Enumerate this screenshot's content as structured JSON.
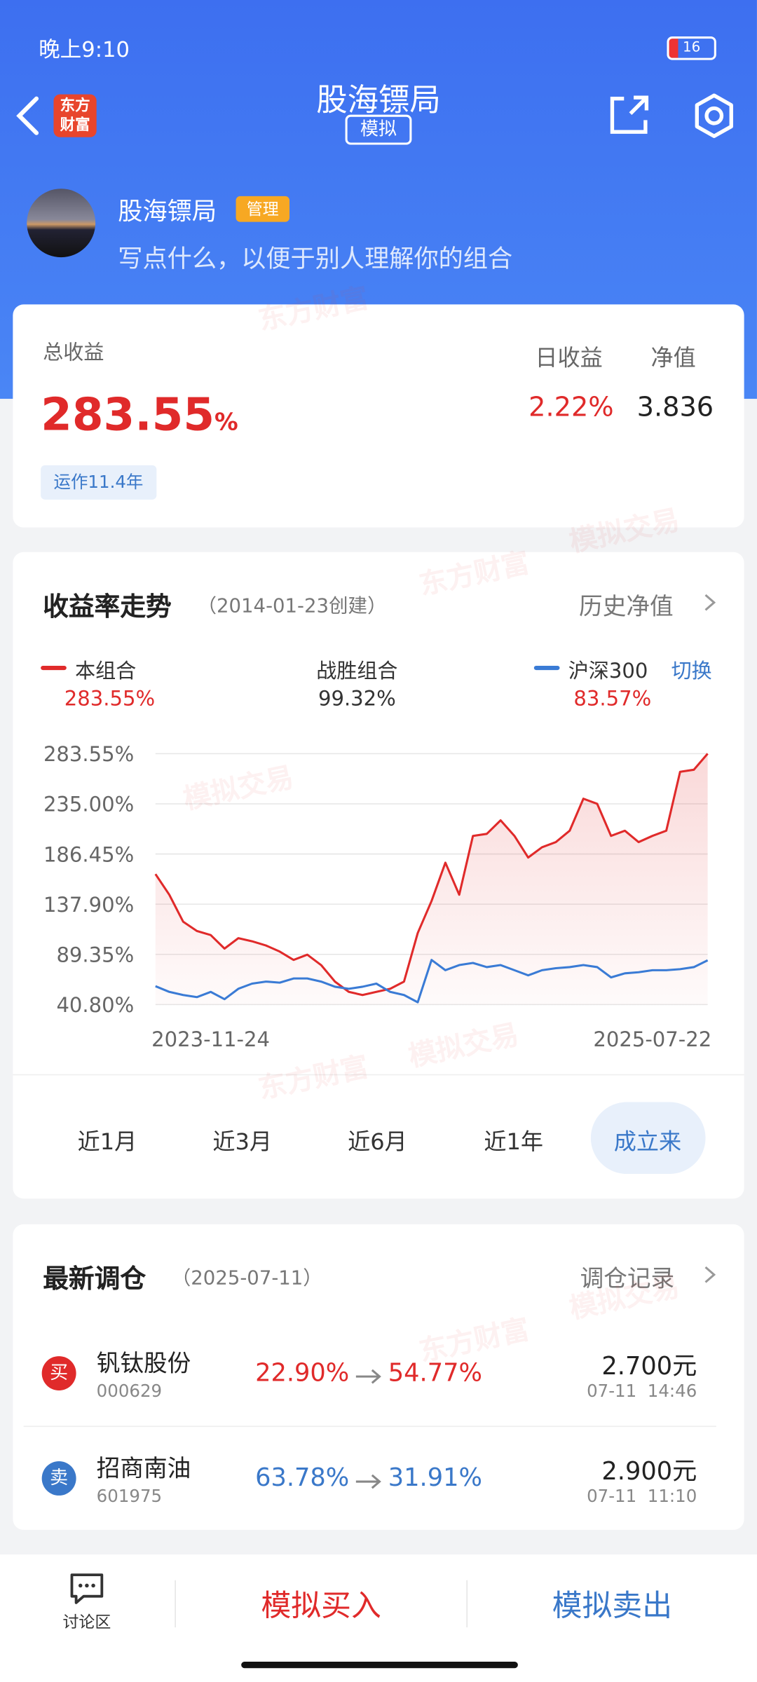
{
  "status_bar": {
    "time": "晚上9:10",
    "battery": "16"
  },
  "header": {
    "title": "股海镖局",
    "badge": "模拟",
    "logo": "东方财富"
  },
  "profile": {
    "name": "股海镖局",
    "role": "管理",
    "bio": "写点什么，以便于别人理解你的组合"
  },
  "summary": {
    "total_label": "总收益",
    "total_value": "283.55",
    "total_unit": "%",
    "daily_label": "日收益",
    "daily_value": "2.22%",
    "nav_label": "净值",
    "nav_value": "3.836",
    "running": "运作11.4年"
  },
  "watermark": {
    "brand": "东方财富",
    "mode": "模拟交易"
  },
  "trend": {
    "title": "收益率走势",
    "created": "（2014-01-23创建）",
    "history_link": "历史净值",
    "switch": "切换",
    "beat_label": "战胜组合",
    "beat_value": "99.32%",
    "ranges": [
      "近1月",
      "近3月",
      "近6月",
      "近1年",
      "成立来"
    ],
    "selected_range": 4
  },
  "chart_data": {
    "type": "line",
    "grid": true,
    "categories": [
      null,
      null,
      null,
      null,
      "2023-11-24",
      null,
      null,
      null,
      null,
      null,
      null,
      null,
      null,
      null,
      null,
      null,
      null,
      null,
      null,
      null,
      null,
      null,
      null,
      null,
      null,
      null,
      null,
      null,
      null,
      null,
      null,
      null,
      null,
      null,
      null,
      null,
      "2025-07-22",
      null,
      null,
      null,
      null
    ],
    "series": [
      {
        "name": "本组合",
        "color": "#e02a2a",
        "latest_label": "283.55%",
        "values": [
          167,
          147,
          121,
          112,
          108,
          95,
          105,
          102,
          98,
          92,
          84,
          89,
          79,
          63,
          53,
          50,
          53,
          56,
          63,
          110,
          141,
          178,
          147,
          204,
          206,
          219,
          204,
          183,
          193,
          198,
          209,
          240,
          235,
          204,
          209,
          198,
          204,
          209,
          266,
          268,
          283.55
        ]
      },
      {
        "name": "沪深300",
        "color": "#3a7bd5",
        "latest_label": "83.57%",
        "values": [
          58.5,
          53,
          50,
          48,
          53,
          46,
          56,
          61,
          63,
          62,
          66,
          66,
          63,
          58,
          56,
          58,
          61,
          53,
          50,
          43,
          84,
          74,
          79,
          81,
          77,
          79,
          74,
          69,
          74,
          76,
          77,
          79,
          77,
          67,
          71,
          72,
          74,
          74,
          75,
          77,
          83.57
        ]
      }
    ],
    "ylim": [
      40.8,
      283.55
    ],
    "yticks": [
      {
        "value": 40.8,
        "label": "40.80%"
      },
      {
        "value": 89.35,
        "label": "89.35%"
      },
      {
        "value": 137.9,
        "label": "137.90%"
      },
      {
        "value": 186.45,
        "label": "186.45%"
      },
      {
        "value": 235,
        "label": "235.00%"
      },
      {
        "value": 283.55,
        "label": "283.55%"
      }
    ]
  },
  "rebalance": {
    "title": "最新调仓",
    "date": "（2025-07-11）",
    "link": "调仓记录",
    "items": [
      {
        "action": "买",
        "name": "钒钛股份",
        "code": "000629",
        "from": "22.90%",
        "to": "54.77%",
        "price": "2.700元",
        "time": "07-11  14:46"
      },
      {
        "action": "卖",
        "name": "招商南油",
        "code": "601975",
        "from": "63.78%",
        "to": "31.91%",
        "price": "2.900元",
        "time": "07-11  11:10"
      }
    ]
  },
  "bottom_bar": {
    "discuss": "讨论区",
    "buy": "模拟买入",
    "sell": "模拟卖出"
  }
}
